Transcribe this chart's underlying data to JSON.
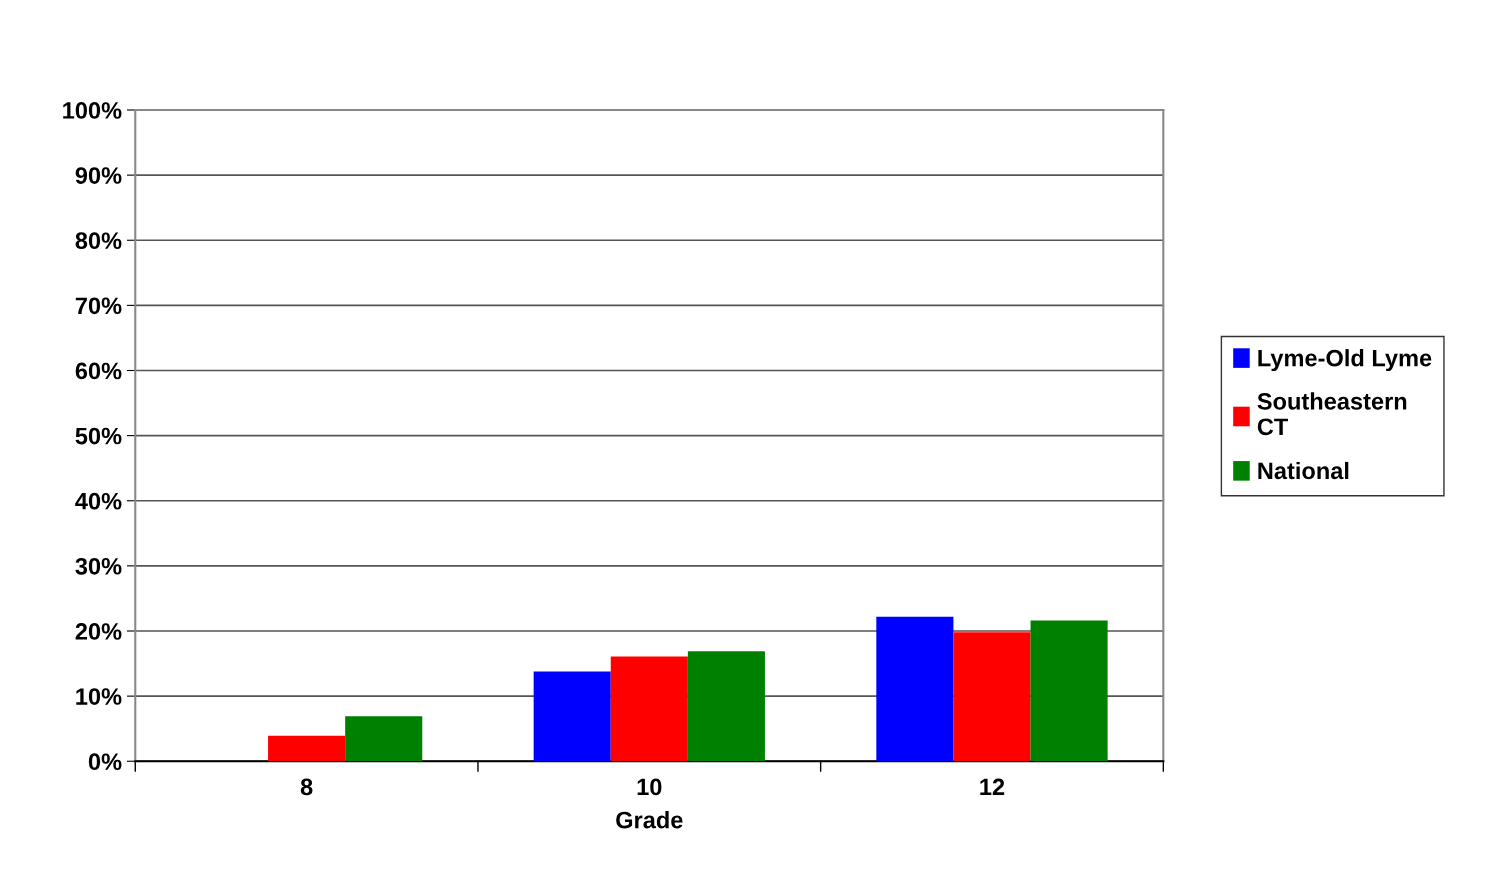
{
  "chart_data": {
    "type": "bar",
    "xlabel": "Grade",
    "categories": [
      "8",
      "10",
      "12"
    ],
    "series": [
      {
        "name": "Lyme-Old Lyme",
        "color": "#0000ff",
        "values": [
          null,
          13.8,
          22.2
        ]
      },
      {
        "name": "Southeastern CT",
        "color": "#ff0000",
        "values": [
          3.9,
          16.1,
          19.8
        ]
      },
      {
        "name": "National",
        "color": "#008000",
        "values": [
          6.9,
          16.9,
          21.6
        ]
      }
    ],
    "ylim": [
      0,
      100
    ],
    "yticks": [
      {
        "value": 0,
        "label": "0%"
      },
      {
        "value": 10,
        "label": "10%"
      },
      {
        "value": 20,
        "label": "20%"
      },
      {
        "value": 30,
        "label": "30%"
      },
      {
        "value": 40,
        "label": "40%"
      },
      {
        "value": 50,
        "label": "50%"
      },
      {
        "value": 60,
        "label": "60%"
      },
      {
        "value": 70,
        "label": "70%"
      },
      {
        "value": 80,
        "label": "80%"
      },
      {
        "value": 90,
        "label": "90%"
      },
      {
        "value": 100,
        "label": "100%"
      }
    ],
    "grid": "y",
    "legend": "right"
  }
}
